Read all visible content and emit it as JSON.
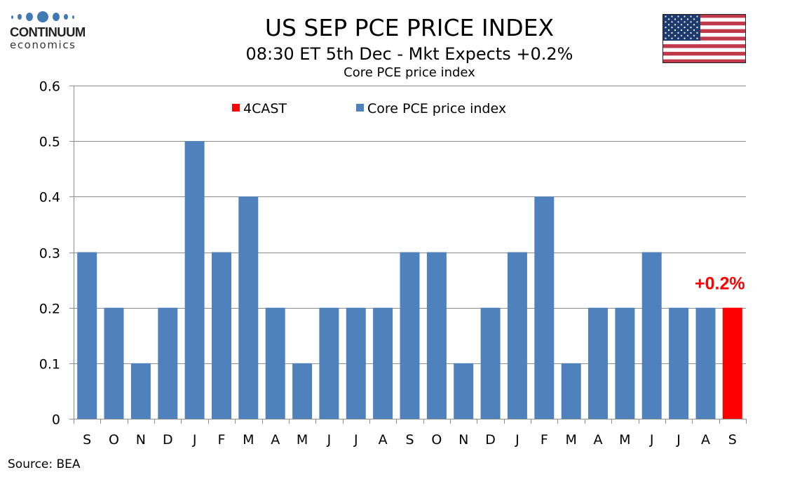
{
  "logo": {
    "name": "CONTINUUM",
    "sub": "economics"
  },
  "header": {
    "title": "US SEP PCE PRICE INDEX",
    "subtitle": "08:30 ET 5th Dec - Mkt Expects +0.2%"
  },
  "flag": {
    "icon": "us-flag-icon"
  },
  "source": "Source: BEA",
  "colors": {
    "actual": "#4f81bd",
    "forecast": "#ff0000",
    "grid": "#8c8c8c"
  },
  "chart_data": {
    "type": "bar",
    "title": "Core PCE price index",
    "xlabel": "",
    "ylabel": "",
    "ylim": [
      0,
      0.6
    ],
    "yticks": [
      0,
      0.1,
      0.2,
      0.3,
      0.4,
      0.5,
      0.6
    ],
    "ytick_labels": [
      "0",
      "0.1",
      "0.2",
      "0.3",
      "0.4",
      "0.5",
      "0.6"
    ],
    "grid": true,
    "legend_position": "top",
    "categories": [
      "S",
      "O",
      "N",
      "D",
      "J",
      "F",
      "M",
      "A",
      "M",
      "J",
      "J",
      "A",
      "S",
      "O",
      "N",
      "D",
      "J",
      "F",
      "M",
      "A",
      "M",
      "J",
      "J",
      "A",
      "S"
    ],
    "series": [
      {
        "name": "4CAST",
        "color": "#ff0000",
        "values": [
          null,
          null,
          null,
          null,
          null,
          null,
          null,
          null,
          null,
          null,
          null,
          null,
          null,
          null,
          null,
          null,
          null,
          null,
          null,
          null,
          null,
          null,
          null,
          null,
          0.2
        ]
      },
      {
        "name": "Core PCE price index",
        "color": "#4f81bd",
        "values": [
          0.3,
          0.2,
          0.1,
          0.2,
          0.5,
          0.3,
          0.4,
          0.2,
          0.1,
          0.2,
          0.2,
          0.2,
          0.3,
          0.3,
          0.1,
          0.2,
          0.3,
          0.4,
          0.1,
          0.2,
          0.2,
          0.3,
          0.2,
          0.2,
          null
        ]
      }
    ],
    "annotations": [
      {
        "text": "+0.2%",
        "category_index": 24,
        "value": 0.2,
        "color": "#ff0000"
      }
    ]
  }
}
